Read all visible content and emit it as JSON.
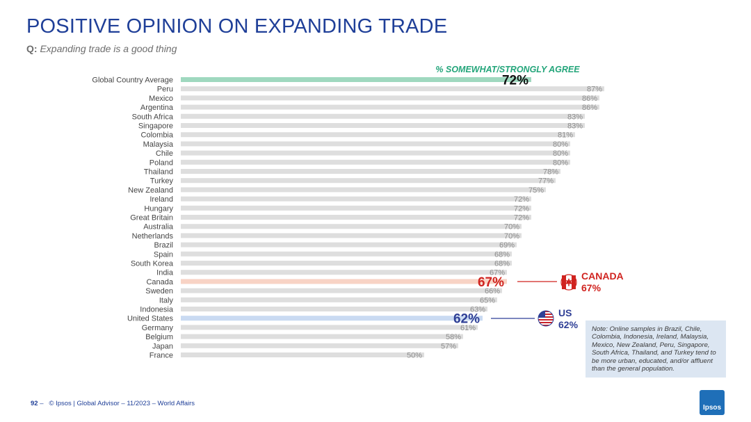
{
  "header": {
    "title": "POSITIVE OPINION ON EXPANDING TRADE",
    "question_prefix": "Q:",
    "question_text": "Expanding trade is a good thing"
  },
  "chart_data": {
    "type": "bar",
    "orientation": "horizontal",
    "series_label": "% SOMEWHAT/STRONGLY AGREE",
    "categories": [
      "Global Country Average",
      "Peru",
      "Mexico",
      "Argentina",
      "South Africa",
      "Singapore",
      "Colombia",
      "Malaysia",
      "Chile",
      "Poland",
      "Thailand",
      "Turkey",
      "New Zealand",
      "Ireland",
      "Hungary",
      "Great Britain",
      "Australia",
      "Netherlands",
      "Brazil",
      "Spain",
      "South Korea",
      "India",
      "Canada",
      "Sweden",
      "Italy",
      "Indonesia",
      "United States",
      "Germany",
      "Belgium",
      "Japan",
      "France"
    ],
    "values": [
      72,
      87,
      86,
      86,
      83,
      83,
      81,
      80,
      80,
      80,
      78,
      77,
      75,
      72,
      72,
      72,
      70,
      70,
      69,
      68,
      68,
      67,
      67,
      66,
      65,
      63,
      62,
      61,
      58,
      57,
      50
    ],
    "value_labels": [
      "72%",
      "87%",
      "86%",
      "86%",
      "83%",
      "83%",
      "81%",
      "80%",
      "80%",
      "80%",
      "78%",
      "77%",
      "75%",
      "72%",
      "72%",
      "72%",
      "70%",
      "70%",
      "69%",
      "68%",
      "68%",
      "67%",
      "67%",
      "66%",
      "65%",
      "63%",
      "62%",
      "61%",
      "58%",
      "57%",
      "50%"
    ],
    "highlights": [
      {
        "category": "Global Country Average",
        "color": "#9fd8bf",
        "label": "72%",
        "label_color": "#111111"
      },
      {
        "category": "Canada",
        "color": "#f8d3c5",
        "label": "67%",
        "label_color": "#d0231f"
      },
      {
        "category": "United States",
        "color": "#c9daf2",
        "label": "62%",
        "label_color": "#2f3f96"
      }
    ],
    "bar_color": "#dedede",
    "value_label_color": "#8c8c8c",
    "xlim": [
      0,
      100
    ],
    "grid": false,
    "legend": "none"
  },
  "callouts": {
    "canada": {
      "name": "CANADA",
      "value": "67%",
      "color": "#d0231f",
      "icon": "canada-flag-icon"
    },
    "us": {
      "name": "US",
      "value": "62%",
      "color": "#2f3f96",
      "icon": "us-flag-icon"
    }
  },
  "note": "Note: Online samples in Brazil, Chile, Colombia, Indonesia, Ireland, Malaysia, Mexico, New Zealand, Peru, Singapore, South Africa, Thailand, and Turkey tend to be more urban, educated, and/or affluent than the general population.",
  "footer": {
    "page_number": "92",
    "dash": "–",
    "text": "© Ipsos | Global Advisor – 11/2023 – World Affairs"
  },
  "logo": {
    "text": "Ipsos",
    "color": "#1f6fb8"
  }
}
